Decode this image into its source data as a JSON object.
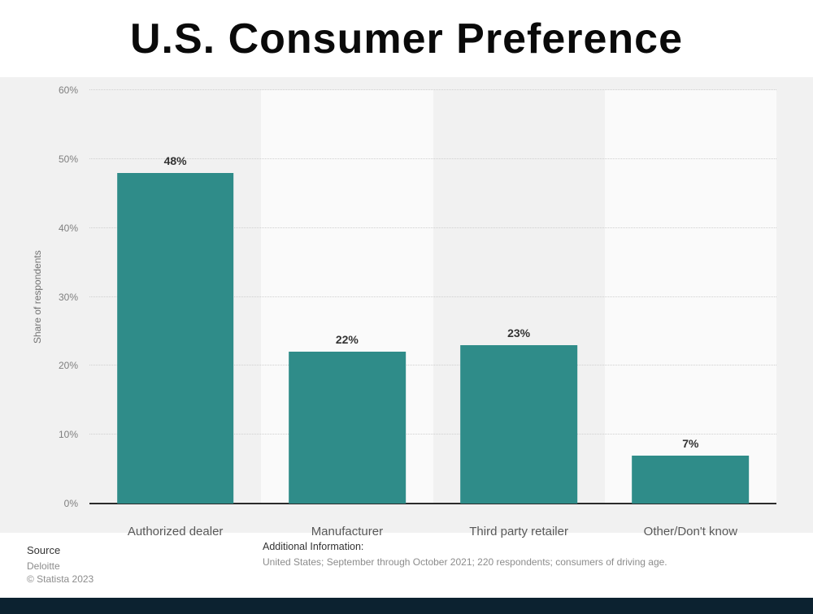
{
  "title": "U.S. Consumer Preference",
  "chart_data": {
    "type": "bar",
    "categories": [
      "Authorized dealer",
      "Manufacturer",
      "Third party retailer",
      "Other/Don't know"
    ],
    "values": [
      48,
      22,
      23,
      7
    ],
    "value_labels": [
      "48%",
      "22%",
      "23%",
      "7%"
    ],
    "ylabel": "Share of respondents",
    "ylim": [
      0,
      60
    ],
    "yticks": [
      0,
      10,
      20,
      30,
      40,
      50,
      60
    ],
    "ytick_labels": [
      "0%",
      "10%",
      "20%",
      "30%",
      "40%",
      "50%",
      "60%"
    ],
    "grid": true,
    "legend": "none",
    "bar_color": "#2f8c89"
  },
  "footer": {
    "source_label": "Source",
    "source_name": "Deloitte",
    "copyright": "© Statista 2023",
    "additional_info_label": "Additional Information:",
    "additional_info": "United States; September through October 2021; 220 respondents; consumers of driving age."
  },
  "colors": {
    "bar": "#2f8c89",
    "bottom_bar": "#0c2230",
    "plot_band_light": "#fafafa",
    "chart_background": "#f1f1f1"
  }
}
